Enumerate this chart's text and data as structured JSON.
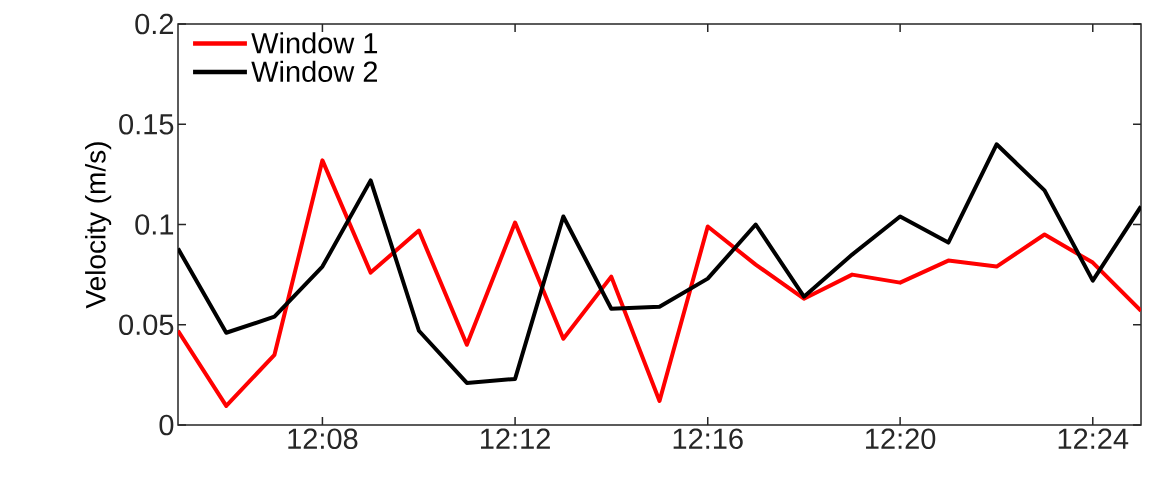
{
  "chart_data": {
    "type": "line",
    "ylabel": "Velocity (m/s)",
    "x": [
      12.0833,
      12.1,
      12.1167,
      12.1333,
      12.15,
      12.1667,
      12.1833,
      12.2,
      12.2167,
      12.2333,
      12.25,
      12.2667,
      12.2833,
      12.3,
      12.3167,
      12.3333,
      12.35,
      12.3667,
      12.3833,
      12.4,
      12.4167
    ],
    "series": [
      {
        "name": "Window 1",
        "color": "#ff0000",
        "values": [
          0.047,
          0.0095,
          0.035,
          0.132,
          0.076,
          0.097,
          0.04,
          0.101,
          0.043,
          0.074,
          0.012,
          0.099,
          0.08,
          0.063,
          0.075,
          0.071,
          0.082,
          0.079,
          0.095,
          0.081,
          0.057
        ]
      },
      {
        "name": "Window 2",
        "color": "#000000",
        "values": [
          0.088,
          0.046,
          0.054,
          0.079,
          0.122,
          0.047,
          0.021,
          0.023,
          0.104,
          0.058,
          0.059,
          0.073,
          0.1,
          0.064,
          0.085,
          0.104,
          0.091,
          0.14,
          0.117,
          0.072,
          0.109
        ]
      }
    ],
    "xlim": [
      12.0833,
      12.4167
    ],
    "xticks": [
      {
        "value": 12.1333,
        "label": "12:08"
      },
      {
        "value": 12.2,
        "label": "12:12"
      },
      {
        "value": 12.2667,
        "label": "12:16"
      },
      {
        "value": 12.3333,
        "label": "12:20"
      },
      {
        "value": 12.4,
        "label": "12:24"
      }
    ],
    "ylim": [
      0,
      0.2
    ],
    "yticks": [
      0,
      0.05,
      0.1,
      0.15,
      0.2
    ],
    "grid": false,
    "legend": "top left",
    "marker": "none",
    "line_style": "solid"
  }
}
